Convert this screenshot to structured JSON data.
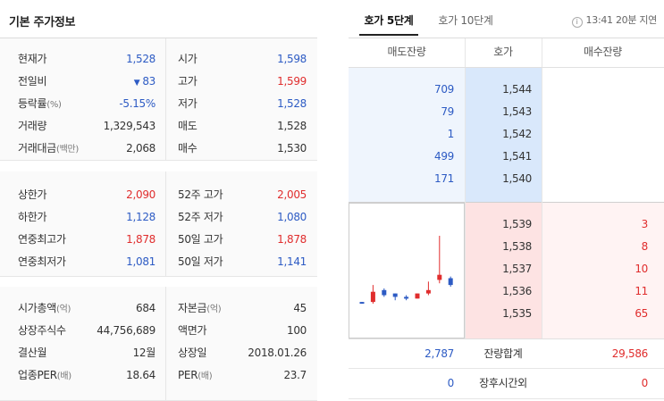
{
  "left_title": "기본 주가정보",
  "section1": [
    {
      "label": "현재가",
      "unit": "",
      "value": "1,528",
      "color": "blue",
      "arrow": "",
      "label2": "시가",
      "unit2": "",
      "value2": "1,598",
      "color2": "blue"
    },
    {
      "label": "전일비",
      "unit": "",
      "value": "83",
      "color": "blue",
      "arrow": "▼",
      "label2": "고가",
      "unit2": "",
      "value2": "1,599",
      "color2": "red"
    },
    {
      "label": "등락률",
      "unit": "(%)",
      "value": "-5.15%",
      "color": "blue",
      "arrow": "",
      "label2": "저가",
      "unit2": "",
      "value2": "1,528",
      "color2": "blue"
    },
    {
      "label": "거래량",
      "unit": "",
      "value": "1,329,543",
      "color": "dark",
      "arrow": "",
      "label2": "매도",
      "unit2": "",
      "value2": "1,528",
      "color2": "dark"
    },
    {
      "label": "거래대금",
      "unit": "(백만)",
      "value": "2,068",
      "color": "dark",
      "arrow": "",
      "label2": "매수",
      "unit2": "",
      "value2": "1,530",
      "color2": "dark"
    }
  ],
  "section2": [
    {
      "label": "상한가",
      "unit": "",
      "value": "2,090",
      "color": "red",
      "arrow": "",
      "label2": "52주 고가",
      "unit2": "",
      "value2": "2,005",
      "color2": "red"
    },
    {
      "label": "하한가",
      "unit": "",
      "value": "1,128",
      "color": "blue",
      "arrow": "",
      "label2": "52주 저가",
      "unit2": "",
      "value2": "1,080",
      "color2": "blue"
    },
    {
      "label": "연중최고가",
      "unit": "",
      "value": "1,878",
      "color": "red",
      "arrow": "",
      "label2": "50일 고가",
      "unit2": "",
      "value2": "1,878",
      "color2": "red"
    },
    {
      "label": "연중최저가",
      "unit": "",
      "value": "1,081",
      "color": "blue",
      "arrow": "",
      "label2": "50일 저가",
      "unit2": "",
      "value2": "1,141",
      "color2": "blue"
    }
  ],
  "section3": [
    {
      "label": "시가총액",
      "unit": "(억)",
      "value": "684",
      "color": "dark",
      "arrow": "",
      "label2": "자본금",
      "unit2": "(억)",
      "value2": "45",
      "color2": "dark"
    },
    {
      "label": "상장주식수",
      "unit": "",
      "value": "44,756,689",
      "color": "dark",
      "arrow": "",
      "label2": "액면가",
      "unit2": "",
      "value2": "100",
      "color2": "dark"
    },
    {
      "label": "결산월",
      "unit": "",
      "value": "12월",
      "color": "dark",
      "arrow": "",
      "label2": "상장일",
      "unit2": "",
      "value2": "2018.01.26",
      "color2": "dark"
    },
    {
      "label": "업종PER",
      "unit": "(배)",
      "value": "18.64",
      "color": "dark",
      "arrow": "",
      "label2": "PER",
      "unit2": "(배)",
      "value2": "23.7",
      "color2": "dark"
    }
  ],
  "tabs": [
    {
      "label": "호가 5단계",
      "active": true
    },
    {
      "label": "호가 10단계",
      "active": false
    }
  ],
  "time_label": "13:41 20분 지연",
  "info_icon_glyph": "i",
  "ob_headers": {
    "sell": "매도잔량",
    "price": "호가",
    "buy": "매수잔량"
  },
  "sell_orders": [
    {
      "qty": "709",
      "price": "1,544"
    },
    {
      "qty": "79",
      "price": "1,543"
    },
    {
      "qty": "1",
      "price": "1,542"
    },
    {
      "qty": "499",
      "price": "1,541"
    },
    {
      "qty": "171",
      "price": "1,540"
    }
  ],
  "buy_orders": [
    {
      "price": "1,539",
      "qty": "3"
    },
    {
      "price": "1,538",
      "qty": "8"
    },
    {
      "price": "1,537",
      "qty": "10"
    },
    {
      "price": "1,536",
      "qty": "11"
    },
    {
      "price": "1,535",
      "qty": "65"
    }
  ],
  "summary": [
    {
      "sell": "2,787",
      "label": "잔량합계",
      "buy": "29,586"
    },
    {
      "sell": "0",
      "label": "장후시간외",
      "buy": "0"
    }
  ],
  "colors": {
    "up": "#e02d2d",
    "down": "#2d5bc4"
  },
  "candles": [
    {
      "dir": "down",
      "open": 1541,
      "close": 1540,
      "high": 1541,
      "low": 1540
    },
    {
      "dir": "up",
      "open": 1541,
      "close": 1547,
      "high": 1551,
      "low": 1540
    },
    {
      "dir": "down",
      "open": 1548,
      "close": 1545,
      "high": 1549,
      "low": 1544
    },
    {
      "dir": "down",
      "open": 1546,
      "close": 1544,
      "high": 1546,
      "low": 1542
    },
    {
      "dir": "down",
      "open": 1544,
      "close": 1543,
      "high": 1545,
      "low": 1542
    },
    {
      "dir": "up",
      "open": 1543,
      "close": 1546,
      "high": 1546,
      "low": 1543
    },
    {
      "dir": "up",
      "open": 1546,
      "close": 1548,
      "high": 1553,
      "low": 1545
    },
    {
      "dir": "up",
      "open": 1554,
      "close": 1557,
      "high": 1580,
      "low": 1552
    },
    {
      "dir": "down",
      "open": 1555,
      "close": 1551,
      "high": 1556,
      "low": 1550
    }
  ]
}
